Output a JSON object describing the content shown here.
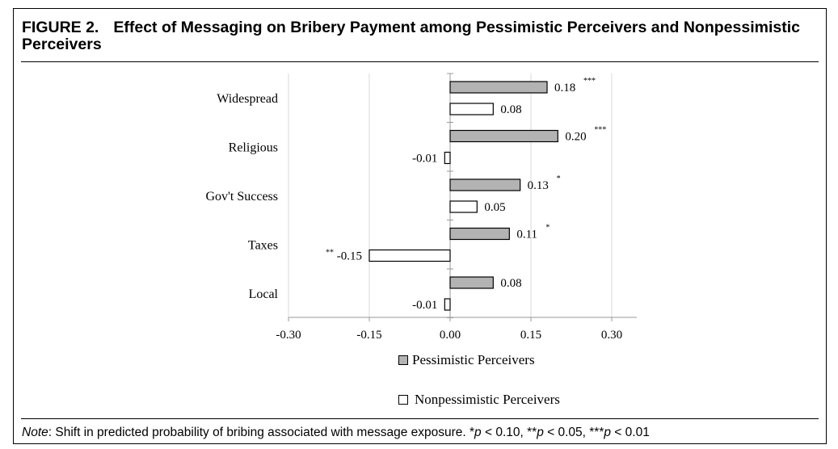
{
  "figure": {
    "label": "FIGURE 2.",
    "title": "Effect of Messaging on Bribery Payment among Pessimistic Perceivers and Nonpessimistic Perceivers"
  },
  "note": {
    "label": "Note",
    "text": ": Shift in predicted probability of bribing associated with message exposure. *",
    "p1": " < 0.10, **",
    "p2": " < 0.05, ***",
    "p3": " < 0.01",
    "p_symbol": "p"
  },
  "chart_data": {
    "type": "bar",
    "orientation": "horizontal",
    "title": "Effect of Messaging on Bribery Payment among Pessimistic Perceivers and Nonpessimistic Perceivers",
    "categories": [
      "Widespread",
      "Religious",
      "Gov't Success",
      "Taxes",
      "Local"
    ],
    "series": [
      {
        "name": "Pessimistic Perceivers",
        "color": "#b3b3b3",
        "values": [
          0.18,
          0.2,
          0.13,
          0.11,
          0.08
        ],
        "labels": [
          "0.18",
          "0.20",
          "0.13",
          "0.11",
          "0.08"
        ],
        "stars": [
          "***",
          "***",
          "*",
          "*",
          ""
        ]
      },
      {
        "name": "Nonpessimistic Perceivers",
        "color": "#ffffff",
        "values": [
          0.08,
          -0.01,
          0.05,
          -0.15,
          -0.01
        ],
        "labels": [
          "0.08",
          "-0.01",
          "0.05",
          "-0.15",
          "-0.01"
        ],
        "stars": [
          "",
          "",
          "",
          "**",
          ""
        ]
      }
    ],
    "xlim": [
      -0.3,
      0.34
    ],
    "xticks": [
      -0.3,
      -0.15,
      0.0,
      0.15,
      0.3
    ],
    "xtick_labels": [
      "-0.30",
      "-0.15",
      "0.00",
      "0.15",
      "0.30"
    ],
    "grid": true,
    "legend": "bottom"
  }
}
